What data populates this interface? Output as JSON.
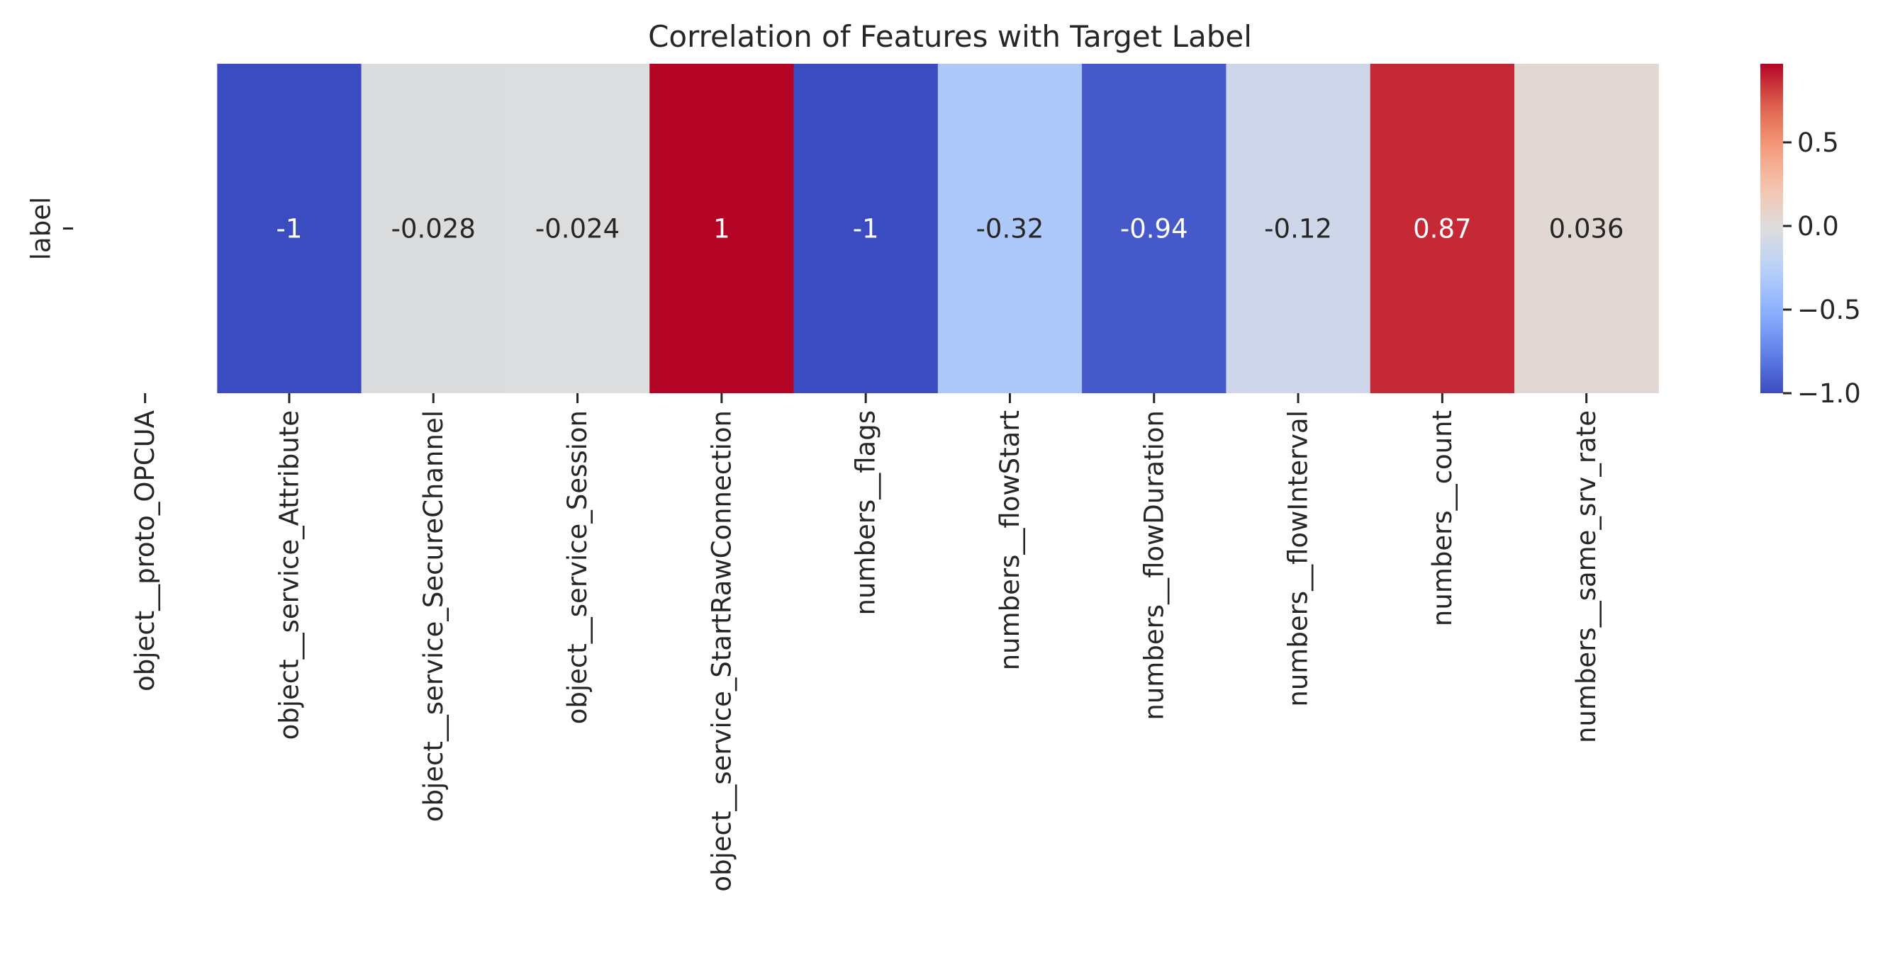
{
  "chart_data": {
    "type": "heatmap",
    "title": "Correlation of Features with Target Label",
    "colormap": "coolwarm",
    "rows": [
      "label"
    ],
    "columns": [
      "object__proto_OPCUA",
      "object__service_Attribute",
      "object__service_SecureChannel",
      "object__service_Session",
      "object__service_StartRawConnection",
      "numbers__flags",
      "numbers__flowStart",
      "numbers__flowDuration",
      "numbers__flowInterval",
      "numbers__count",
      "numbers__same_srv_rate"
    ],
    "values": [
      null,
      -1,
      -0.028,
      -0.024,
      1,
      -1,
      -0.32,
      -0.94,
      -0.12,
      0.87,
      0.036
    ],
    "annotations": [
      "",
      "-1",
      "-0.028",
      "-0.024",
      "1",
      "-1",
      "-0.32",
      "-0.94",
      "-0.12",
      "0.87",
      "0.036"
    ],
    "colorbar": {
      "range": [
        -1.0,
        0.97
      ],
      "ticks": [
        0.5,
        0.0,
        -0.5,
        -1.0
      ],
      "tick_labels": [
        "0.5",
        "0.0",
        "−0.5",
        "−1.0"
      ]
    }
  }
}
